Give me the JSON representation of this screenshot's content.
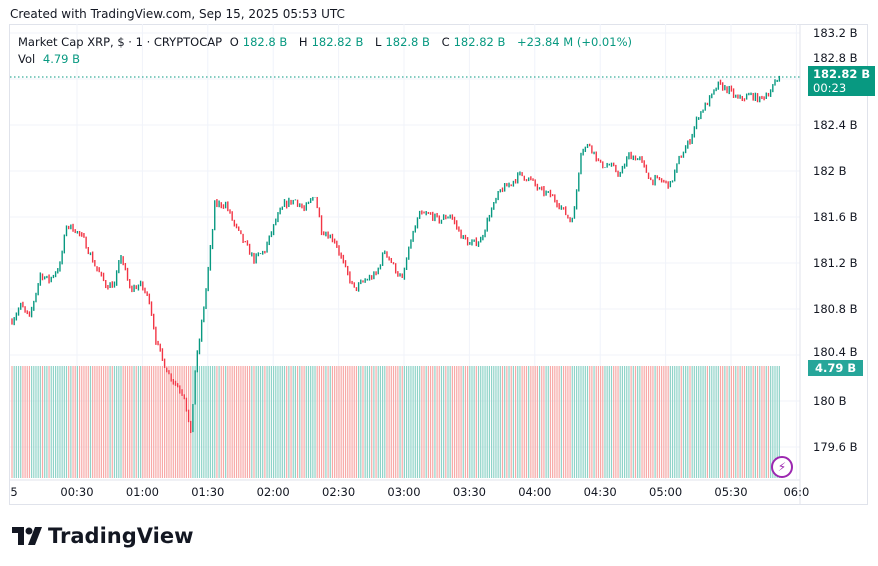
{
  "header": {
    "created": "Created with TradingView.com, Sep 15, 2025 05:53 UTC"
  },
  "legend": {
    "symbol": "Market Cap XRP, $ · 1 · CRYPTOCAP",
    "o_label": "O",
    "o": "182.8 B",
    "h_label": "H",
    "h": "182.82 B",
    "l_label": "L",
    "l": "182.8 B",
    "c_label": "C",
    "c": "182.82 B",
    "change": "+23.84 M (+0.01%)",
    "vol_label": "Vol",
    "vol": "4.79 B"
  },
  "badges": {
    "price": "182.82 B",
    "countdown": "00:23",
    "volume": "4.79 B"
  },
  "colors": {
    "up": "#089981",
    "down": "#f23645",
    "up_vol": "#8fd3c8",
    "down_vol": "#f7a9a7",
    "grid": "#f0f3fa"
  },
  "icons": {
    "alert": "lightning-bolt-icon",
    "logo": "tradingview-logo"
  },
  "brand": "TradingView",
  "chart_data": {
    "type": "candlestick",
    "y_ticks": [
      "183.2 B",
      "182.8 B",
      "182.4 B",
      "182 B",
      "181.6 B",
      "181.2 B",
      "180.8 B",
      "180.4 B",
      "180 B",
      "179.6 B"
    ],
    "y_tick_values": [
      183.2,
      182.8,
      182.4,
      182.0,
      181.6,
      181.2,
      180.8,
      180.4,
      180.0,
      179.6
    ],
    "x_ticks": [
      "5",
      "00:30",
      "01:00",
      "01:30",
      "02:00",
      "02:30",
      "03:00",
      "03:30",
      "04:00",
      "04:30",
      "05:00",
      "05:30",
      "06:0"
    ],
    "ylim": [
      179.35,
      183.3
    ],
    "last_price": 182.82,
    "price_path": [
      [
        "00:00",
        180.7
      ],
      [
        "00:04",
        180.83
      ],
      [
        "00:08",
        180.72
      ],
      [
        "00:13",
        181.1
      ],
      [
        "00:17",
        181.05
      ],
      [
        "00:22",
        181.18
      ],
      [
        "00:25",
        181.53
      ],
      [
        "00:29",
        181.49
      ],
      [
        "00:33",
        181.4
      ],
      [
        "00:38",
        181.18
      ],
      [
        "00:43",
        181.01
      ],
      [
        "00:47",
        181.01
      ],
      [
        "00:50",
        181.27
      ],
      [
        "00:54",
        180.97
      ],
      [
        "00:59",
        181.01
      ],
      [
        "01:03",
        180.88
      ],
      [
        "01:06",
        180.53
      ],
      [
        "01:09",
        180.36
      ],
      [
        "01:12",
        180.23
      ],
      [
        "01:17",
        180.1
      ],
      [
        "01:19",
        180.05
      ],
      [
        "01:22",
        179.7
      ],
      [
        "01:24",
        180.27
      ],
      [
        "01:26",
        180.53
      ],
      [
        "01:29",
        180.97
      ],
      [
        "01:32",
        181.49
      ],
      [
        "01:33",
        181.71
      ],
      [
        "01:38",
        181.71
      ],
      [
        "01:42",
        181.53
      ],
      [
        "01:47",
        181.36
      ],
      [
        "01:51",
        181.23
      ],
      [
        "01:56",
        181.31
      ],
      [
        "02:01",
        181.57
      ],
      [
        "02:05",
        181.71
      ],
      [
        "02:10",
        181.75
      ],
      [
        "02:14",
        181.66
      ],
      [
        "02:19",
        181.79
      ],
      [
        "02:22",
        181.49
      ],
      [
        "02:28",
        181.4
      ],
      [
        "02:33",
        181.14
      ],
      [
        "02:37",
        180.97
      ],
      [
        "02:42",
        181.05
      ],
      [
        "02:47",
        181.1
      ],
      [
        "02:51",
        181.31
      ],
      [
        "02:56",
        181.14
      ],
      [
        "02:59",
        181.05
      ],
      [
        "03:03",
        181.4
      ],
      [
        "03:07",
        181.62
      ],
      [
        "03:12",
        181.62
      ],
      [
        "03:16",
        181.57
      ],
      [
        "03:21",
        181.62
      ],
      [
        "03:26",
        181.44
      ],
      [
        "03:30",
        181.36
      ],
      [
        "03:35",
        181.4
      ],
      [
        "03:39",
        181.62
      ],
      [
        "03:44",
        181.83
      ],
      [
        "03:48",
        181.88
      ],
      [
        "03:53",
        181.97
      ],
      [
        "03:58",
        181.92
      ],
      [
        "04:02",
        181.83
      ],
      [
        "04:07",
        181.79
      ],
      [
        "04:11",
        181.71
      ],
      [
        "04:16",
        181.57
      ],
      [
        "04:18",
        181.66
      ],
      [
        "04:21",
        182.18
      ],
      [
        "04:25",
        182.23
      ],
      [
        "04:30",
        182.05
      ],
      [
        "04:34",
        182.05
      ],
      [
        "04:39",
        181.97
      ],
      [
        "04:43",
        182.14
      ],
      [
        "04:48",
        182.1
      ],
      [
        "04:53",
        181.92
      ],
      [
        "04:57",
        181.92
      ],
      [
        "05:02",
        181.88
      ],
      [
        "05:06",
        182.1
      ],
      [
        "05:11",
        182.27
      ],
      [
        "05:15",
        182.49
      ],
      [
        "05:20",
        182.62
      ],
      [
        "05:24",
        182.75
      ],
      [
        "05:29",
        182.7
      ],
      [
        "05:33",
        182.62
      ],
      [
        "05:39",
        182.66
      ],
      [
        "05:43",
        182.62
      ],
      [
        "05:48",
        182.7
      ],
      [
        "05:52",
        182.82
      ]
    ],
    "grid": true
  }
}
